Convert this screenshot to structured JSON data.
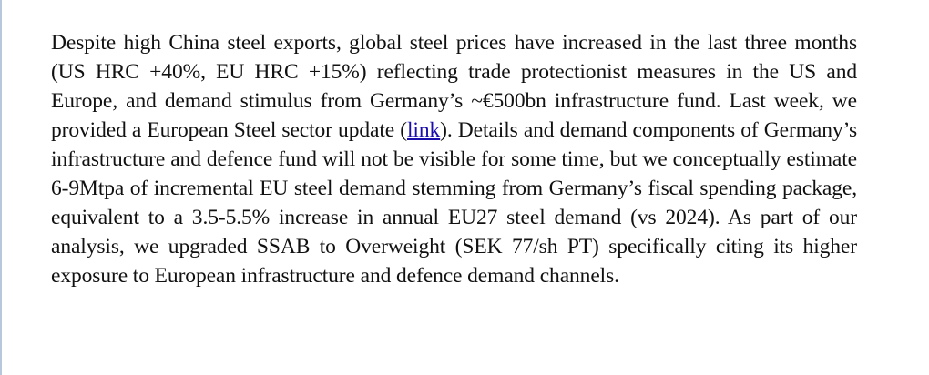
{
  "paragraph": {
    "part1": "Despite high China steel exports, global steel prices have increased in the last three months (US HRC +40%, EU HRC +15%) reflecting trade protectionist measures in the US and Europe, and demand stimulus from Germany’s ~€500bn infrastructure fund. Last week, we provided a European Steel sector update (",
    "link_text": "link",
    "part2": "). Details and demand components of Germany’s infrastructure and defence fund will not be visible for some time, but we conceptually estimate 6-9Mtpa of incremental EU steel demand stemming from Germany’s fiscal spending package, equivalent to a 3.5-5.5% increase in annual EU27 steel demand (vs 2024). As part of our analysis, we upgraded SSAB to Overweight (SEK 77/sh PT) specifically citing its higher exposure to European infrastructure and defence demand channels."
  },
  "colors": {
    "text": "#111111",
    "link": "#1a0dab",
    "page_background": "#ffffff",
    "left_rule": "#b9c7dd"
  }
}
